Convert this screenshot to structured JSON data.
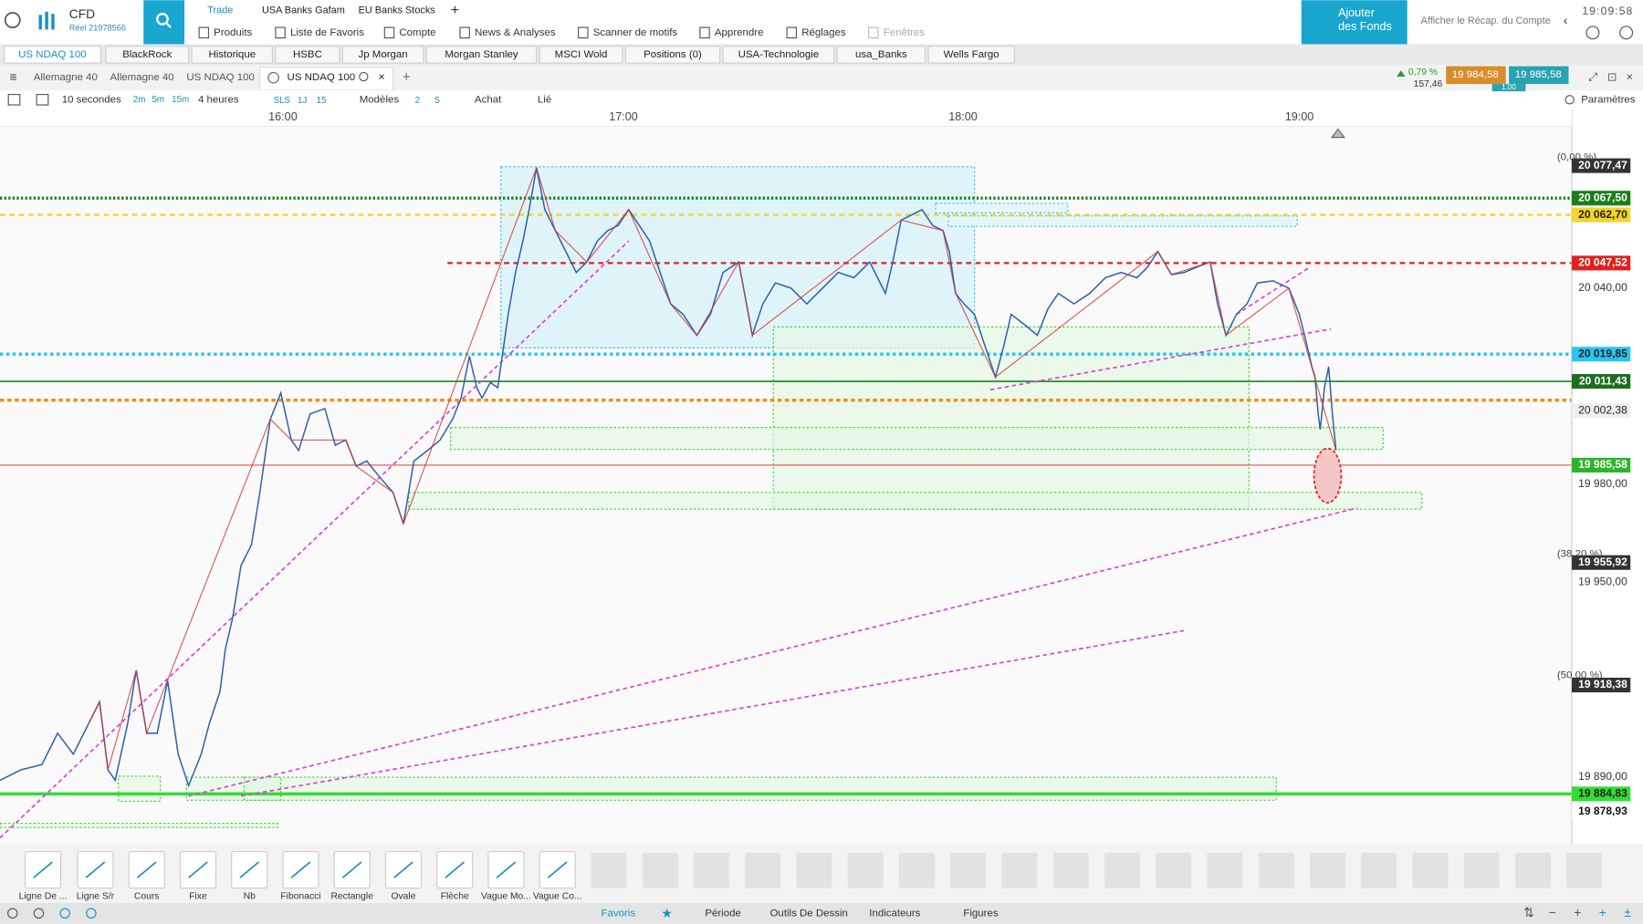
{
  "header": {
    "account_type": "CFD",
    "account_id": "Réel 21978566",
    "menu_top": [
      "Trade",
      "USA Banks Gafam",
      "EU Banks Stocks"
    ],
    "menu": [
      "Produits",
      "Liste de Favoris",
      "Compte",
      "News & Analyses",
      "Scanner de motifs",
      "Apprendre",
      "Réglages",
      "Fenêtres"
    ],
    "fund_button": "Ajouter des Fonds",
    "summary_link": "Afficher le Récap. du Compte",
    "clock": "19:09:58"
  },
  "watchlist_tabs": [
    "US NDAQ 100",
    "BlackRock",
    "Historique",
    "HSBC",
    "Jp Morgan",
    "Morgan Stanley",
    "MSCI Wold",
    "Positions (0)",
    "USA-Technologie",
    "usa_Banks",
    "Wells Fargo"
  ],
  "chart_tabs": [
    "Allemagne 40",
    "Allemagne 40",
    "US NDAQ 100",
    "US NDAQ 100"
  ],
  "quote": {
    "change_pct": "0,79 %",
    "change": "157,46",
    "sell": "19 984,58",
    "buy": "19 985,58",
    "spread": "1,00"
  },
  "toolbar": {
    "interval": "10 secondes",
    "periods_a": [
      "2m",
      "5m",
      "15m"
    ],
    "range": "4 heures",
    "periods_b": [
      "SLS",
      "1J",
      "15"
    ],
    "templates": "Modèles",
    "counts": [
      "2",
      "5"
    ],
    "buy": "Achat",
    "linked": "Lié",
    "settings": "Paramètres"
  },
  "chart": {
    "time_labels": [
      "16:00",
      "17:00",
      "18:00",
      "19:00"
    ],
    "price_labels": [
      "20 077,47",
      "20 067,50",
      "20 062,70",
      "20 047,52",
      "20 040,00",
      "20 019,85",
      "20 011,43",
      "20 002,38",
      "19 985,58",
      "19 980,00",
      "19 955,92",
      "19 950,00",
      "19 918,38",
      "19 890,00",
      "19 884,83",
      "19 878,93"
    ],
    "fib_labels": [
      "(0,00 %)",
      "(38,20 %)",
      "(50,00 %)"
    ]
  },
  "tools": [
    "Ligne De ...",
    "Ligne S/r",
    "Cours",
    "Fixe",
    "Nb",
    "Fibonacci",
    "Rectangle",
    "Ovale",
    "Flèche",
    "Vague Mo...",
    "Vague Co..."
  ],
  "bottom_tabs": [
    "Favoris",
    "Période",
    "Outils De Dessin",
    "Indicateurs",
    "Figures"
  ]
}
